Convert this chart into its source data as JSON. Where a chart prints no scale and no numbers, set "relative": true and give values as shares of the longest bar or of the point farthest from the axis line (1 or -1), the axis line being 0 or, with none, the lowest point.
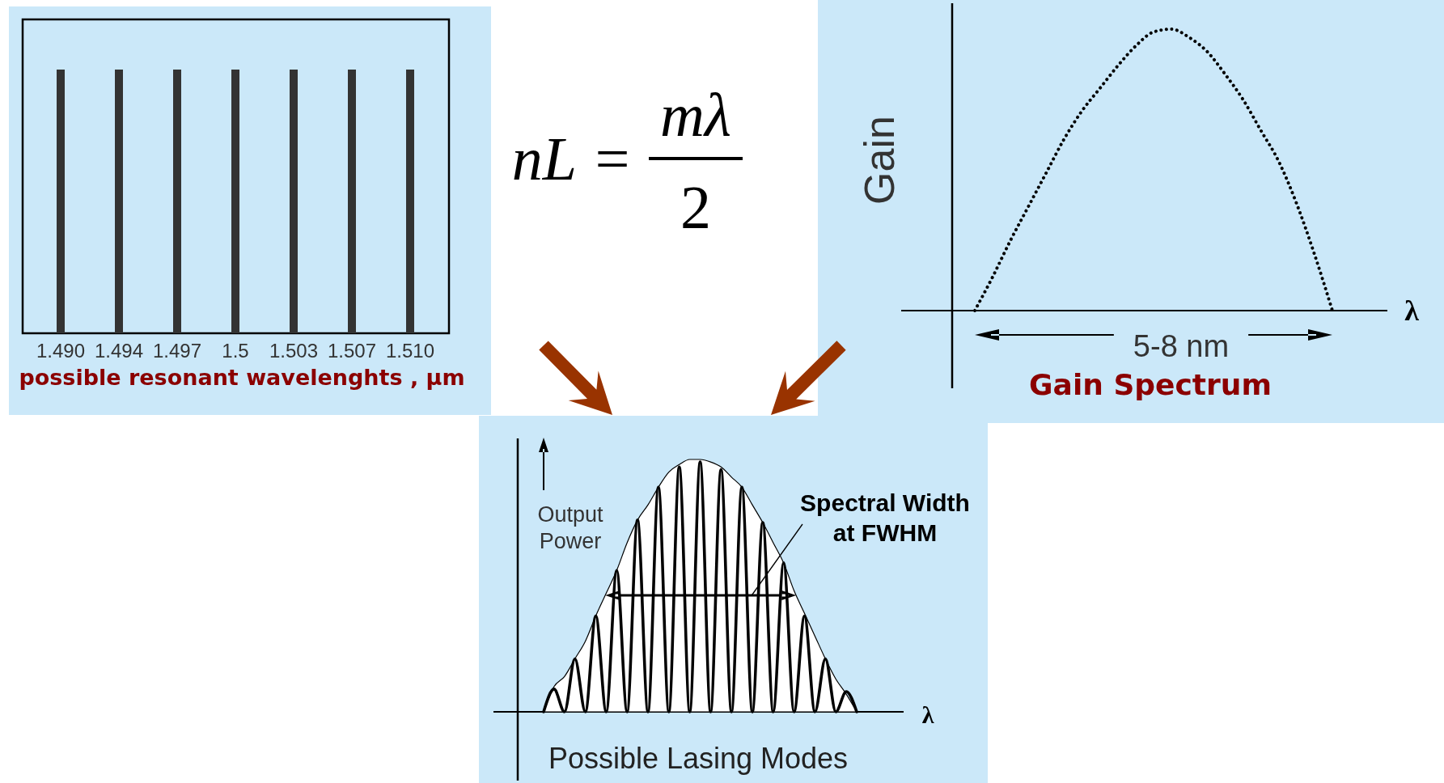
{
  "chart_data": [
    {
      "type": "bar",
      "categories": [
        "1.490",
        "1.494",
        "1.497",
        "1.5",
        "1.503",
        "1.507",
        "1.510"
      ],
      "values": [
        1,
        1,
        1,
        1,
        1,
        1,
        1
      ],
      "color": "#333333",
      "relative": true,
      "xlabel": "possible resonant wavelenghts , µm"
    },
    {
      "type": "other",
      "annotations": [
        "nL =",
        "mλ",
        "2"
      ]
    },
    {
      "type": "line",
      "categories": [
        null,
        null,
        null,
        null,
        null,
        null,
        null,
        null,
        null,
        null,
        null,
        null,
        null,
        null,
        null,
        null,
        null,
        null,
        null,
        null,
        null
      ],
      "values": [
        0,
        0.12,
        0.25,
        0.37,
        0.49,
        0.61,
        0.71,
        0.79,
        0.87,
        0.94,
        0.99,
        1,
        0.97,
        0.92,
        0.84,
        0.75,
        0.64,
        0.53,
        0.38,
        0.2,
        0
      ],
      "color": "#000000",
      "line_style": "dotted",
      "relative": true,
      "title": "Gain Spectrum",
      "xlabel": "λ",
      "ylabel": "Gain",
      "annotations": [
        "5-8 nm"
      ]
    },
    {
      "type": "line",
      "categories": [
        null,
        null,
        null,
        null,
        null,
        null,
        null,
        null,
        null,
        null,
        null,
        null,
        null,
        null,
        null,
        null,
        null,
        null,
        null,
        null,
        null,
        null,
        null,
        null,
        null,
        null,
        null,
        null,
        null,
        null,
        null
      ],
      "series": [
        {
          "type": "area",
          "color": "#ffffff",
          "values": [
            0,
            0.1,
            0.14,
            0.21,
            0.28,
            0.38,
            0.47,
            0.56,
            0.67,
            0.76,
            0.82,
            0.89,
            0.95,
            0.98,
            1,
            1,
            0.99,
            0.97,
            0.93,
            0.89,
            0.82,
            0.75,
            0.67,
            0.59,
            0.48,
            0.39,
            0.3,
            0.21,
            0.13,
            0.07,
            0
          ]
        },
        {
          "type": "line",
          "color": "#000000",
          "values": [
            0,
            0.09,
            0,
            0.21,
            0,
            0.38,
            0,
            0.56,
            0,
            0.76,
            0,
            0.89,
            0,
            0.97,
            0,
            0.99,
            0,
            0.96,
            0,
            0.89,
            0,
            0.75,
            0,
            0.59,
            0,
            0.38,
            0,
            0.21,
            0,
            0.08,
            0
          ]
        }
      ],
      "relative": true,
      "title": "Possible Lasing Modes",
      "xlabel": "λ",
      "ylabel": "Output Power",
      "annotations": [
        "Spectral Width at FWHM"
      ]
    }
  ]
}
